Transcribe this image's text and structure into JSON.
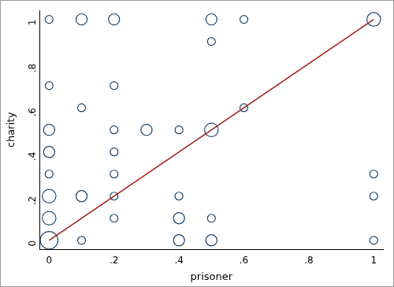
{
  "chart_data": {
    "type": "scatter",
    "x_label": "prisoner",
    "y_label": "charity",
    "xlim": [
      -0.03,
      1.03
    ],
    "ylim": [
      -0.04,
      1.04
    ],
    "xticks": [
      0,
      {
        "value": 0.2,
        "label": ".2"
      },
      {
        "value": 0.4,
        "label": ".4"
      },
      {
        "value": 0.6,
        "label": ".6"
      },
      {
        "value": 0.8,
        "label": ".8"
      },
      1
    ],
    "yticks": [
      0,
      {
        "value": 0.2,
        "label": ".2"
      },
      {
        "value": 0.4,
        "label": ".4"
      },
      {
        "value": 0.6,
        "label": ".6"
      },
      {
        "value": 0.8,
        "label": ".8"
      },
      1
    ],
    "grid": false,
    "series": [
      {
        "type": "scatter",
        "color": "#1a476f",
        "marker": "circle",
        "x": [
          0,
          0.1,
          0.2,
          0.5,
          0.6,
          1,
          0.5,
          0,
          0.2,
          0.1,
          0.6,
          0,
          0.2,
          0.3,
          0.4,
          0.5,
          0,
          0.2,
          0,
          0.2,
          1,
          0,
          0.1,
          0.2,
          0.4,
          1,
          0,
          0.2,
          0.4,
          0.5,
          0,
          0.1,
          0.4,
          0.5,
          1
        ],
        "values": [
          1,
          1,
          1,
          1,
          1,
          1,
          0.9,
          0.7,
          0.7,
          0.6,
          0.6,
          0.5,
          0.5,
          0.5,
          0.5,
          0.5,
          0.4,
          0.4,
          0.3,
          0.3,
          0.3,
          0.2,
          0.2,
          0.2,
          0.2,
          0.2,
          0.1,
          0.1,
          0.1,
          0.1,
          0,
          0,
          0,
          0,
          0
        ],
        "sizes": [
          1,
          2,
          2,
          2,
          1,
          3,
          1,
          1,
          1,
          1,
          1,
          2,
          1,
          2,
          1,
          3,
          2,
          1,
          1,
          1,
          1,
          3,
          2,
          1,
          1,
          1,
          3,
          1,
          2,
          1,
          5,
          1,
          2,
          2,
          1
        ]
      },
      {
        "type": "line",
        "color": "#a01c1c",
        "line_style": "solid",
        "x": [
          0,
          1
        ],
        "values": [
          0,
          1
        ]
      }
    ]
  }
}
